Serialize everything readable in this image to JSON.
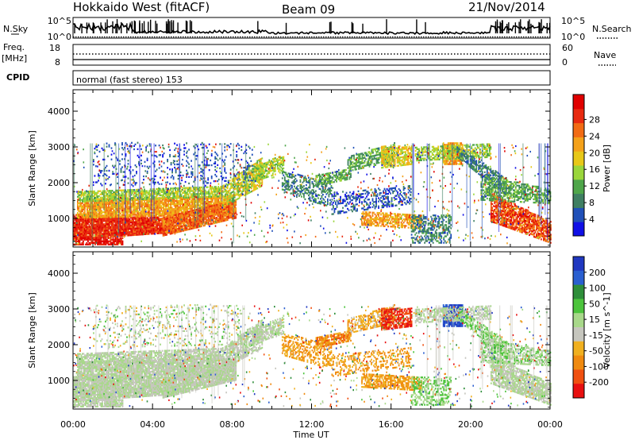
{
  "header": {
    "station": "Hokkaido West (fitACF)",
    "beam": "Beam 09",
    "date": "21/Nov/2014"
  },
  "noise_panel": {
    "left_label": "N.Sky",
    "right_label": "N.Search",
    "left_ticks": [
      "10^5",
      "10^0"
    ],
    "right_ticks": [
      "10^5",
      "10^0"
    ]
  },
  "freq_panel": {
    "left_label_1": "Freq.",
    "left_label_2": "[MHz]",
    "right_label": "Nave",
    "left_ticks": [
      "18",
      "8"
    ],
    "right_ticks": [
      "60",
      "0"
    ]
  },
  "cpid_panel": {
    "label": "CPID",
    "mode_text": "normal (fast stereo) 153"
  },
  "chart_data": [
    {
      "type": "heatmap",
      "name": "Power",
      "ylabel": "Slant Range [km]",
      "yticks": [
        "1000",
        "2000",
        "3000",
        "4000"
      ],
      "ylim": [
        200,
        4600
      ],
      "xlim": [
        0,
        24
      ],
      "colorbar_label": "Power [dB]",
      "colorbar_ticks": [
        "4",
        "8",
        "12",
        "16",
        "20",
        "24",
        "28"
      ],
      "colorbar_colors": [
        "#1010e6",
        "#2050b8",
        "#3f7f62",
        "#4fa64a",
        "#9ad63b",
        "#e8c818",
        "#f4a11a",
        "#f26b14",
        "#e82a10",
        "#e00000"
      ]
    },
    {
      "type": "heatmap",
      "name": "Velocity",
      "ylabel": "Slant Range [km]",
      "yticks": [
        "1000",
        "2000",
        "3000",
        "4000"
      ],
      "ylim": [
        200,
        4600
      ],
      "xlim": [
        0,
        24
      ],
      "colorbar_label": "Velocity [m s^-1]",
      "colorbar_ticks": [
        "200",
        "100",
        "50",
        "15",
        "-15",
        "-50",
        "-100",
        "-200"
      ],
      "colorbar_colors": [
        "#2038c0",
        "#2a5fd0",
        "#2e8e3a",
        "#4cc43c",
        "#a8d88a",
        "#c6c6be",
        "#f0b020",
        "#f08a10",
        "#f05010",
        "#e81010"
      ]
    }
  ],
  "xaxis": {
    "ticks": [
      "00:00",
      "04:00",
      "08:00",
      "12:00",
      "16:00",
      "20:00",
      "00:00"
    ],
    "label": "Time UT"
  }
}
